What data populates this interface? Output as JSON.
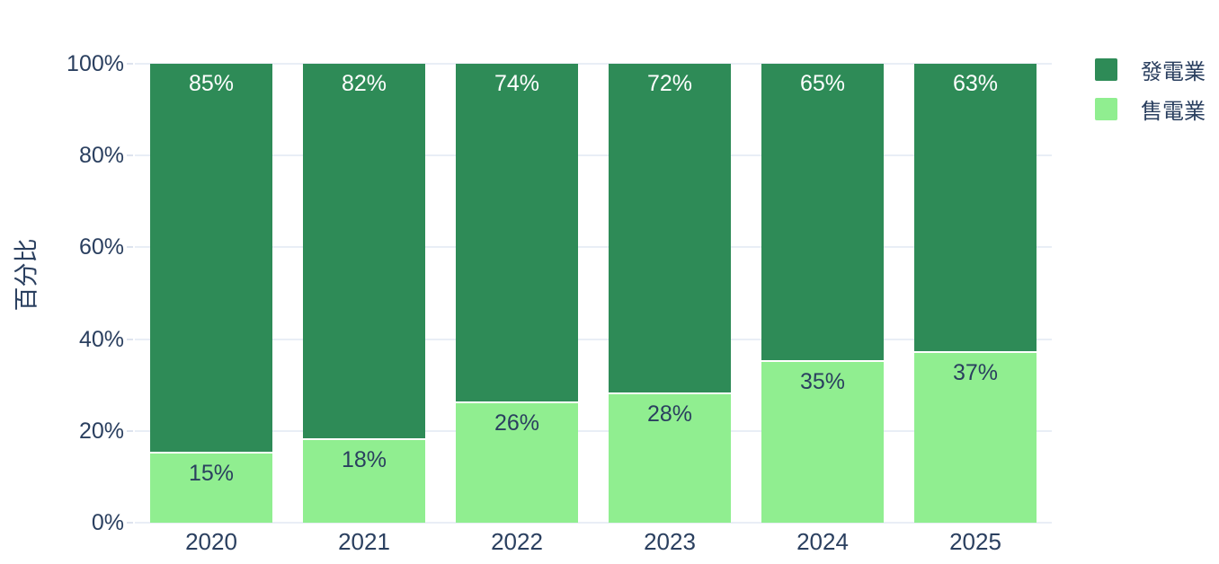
{
  "chart_data": {
    "type": "bar",
    "stacked": true,
    "orientation": "vertical",
    "categories": [
      "2020",
      "2021",
      "2022",
      "2023",
      "2024",
      "2025"
    ],
    "series": [
      {
        "name": "發電業",
        "color": "#2e8b57",
        "values": [
          85,
          82,
          74,
          72,
          65,
          63
        ],
        "labels": [
          "85%",
          "82%",
          "74%",
          "72%",
          "65%",
          "63%"
        ],
        "label_color": "#ffffff"
      },
      {
        "name": "售電業",
        "color": "#90ee90",
        "values": [
          15,
          18,
          26,
          28,
          35,
          37
        ],
        "labels": [
          "15%",
          "18%",
          "26%",
          "28%",
          "35%",
          "37%"
        ],
        "label_color": "#2a3f5f"
      }
    ],
    "title": "",
    "xlabel": "",
    "ylabel": "百分比",
    "ylim": [
      0,
      100
    ],
    "yticks": [
      0,
      20,
      40,
      60,
      80,
      100
    ],
    "ytick_labels": [
      "0%",
      "20%",
      "40%",
      "60%",
      "80%",
      "100%"
    ],
    "grid": true,
    "legend_position": "top-right",
    "background_color": "#ffffff",
    "grid_color": "#e9eef6",
    "axis_text_color": "#2a3f5f"
  }
}
